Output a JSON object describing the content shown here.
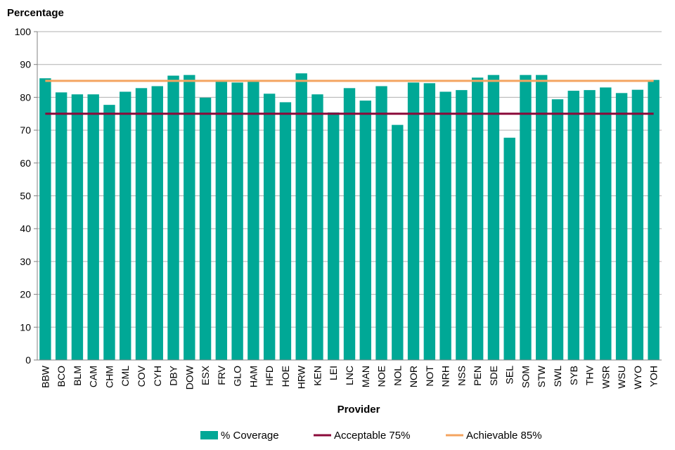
{
  "chart_data": {
    "type": "bar",
    "ylabel": "Percentage",
    "xlabel": "Provider",
    "ylim": [
      0,
      100
    ],
    "yticks": [
      0,
      10,
      20,
      30,
      40,
      50,
      60,
      70,
      80,
      90,
      100
    ],
    "grid": "horizontal",
    "legend_position": "bottom",
    "categories": [
      "BBW",
      "BCO",
      "BLM",
      "CAM",
      "CHM",
      "CML",
      "COV",
      "CYH",
      "DBY",
      "DOW",
      "ESX",
      "FRV",
      "GLO",
      "HAM",
      "HFD",
      "HOE",
      "HRW",
      "KEN",
      "LEI",
      "LNC",
      "MAN",
      "NOE",
      "NOL",
      "NOR",
      "NOT",
      "NRH",
      "NSS",
      "PEN",
      "SDE",
      "SEL",
      "SOM",
      "STW",
      "SWL",
      "SYB",
      "THV",
      "WSR",
      "WSU",
      "WYO",
      "YOH"
    ],
    "series": [
      {
        "name": "% Coverage",
        "type": "bar",
        "color": "#00a896",
        "values": [
          85.8,
          81.5,
          80.9,
          80.9,
          77.7,
          81.7,
          82.8,
          83.4,
          86.6,
          86.8,
          79.9,
          85.0,
          84.5,
          85.0,
          81.1,
          78.5,
          87.3,
          80.9,
          75.4,
          82.8,
          79.0,
          83.4,
          71.6,
          84.5,
          84.3,
          81.7,
          82.2,
          86.0,
          86.8,
          67.7,
          86.8,
          86.8,
          79.4,
          82.0,
          82.2,
          83.0,
          81.3,
          82.3,
          85.3
        ]
      },
      {
        "name": "Acceptable 75%",
        "type": "line",
        "color": "#8b0a3a",
        "value": 75
      },
      {
        "name": "Achievable 85%",
        "type": "line",
        "color": "#f4a460",
        "value": 85
      }
    ]
  }
}
